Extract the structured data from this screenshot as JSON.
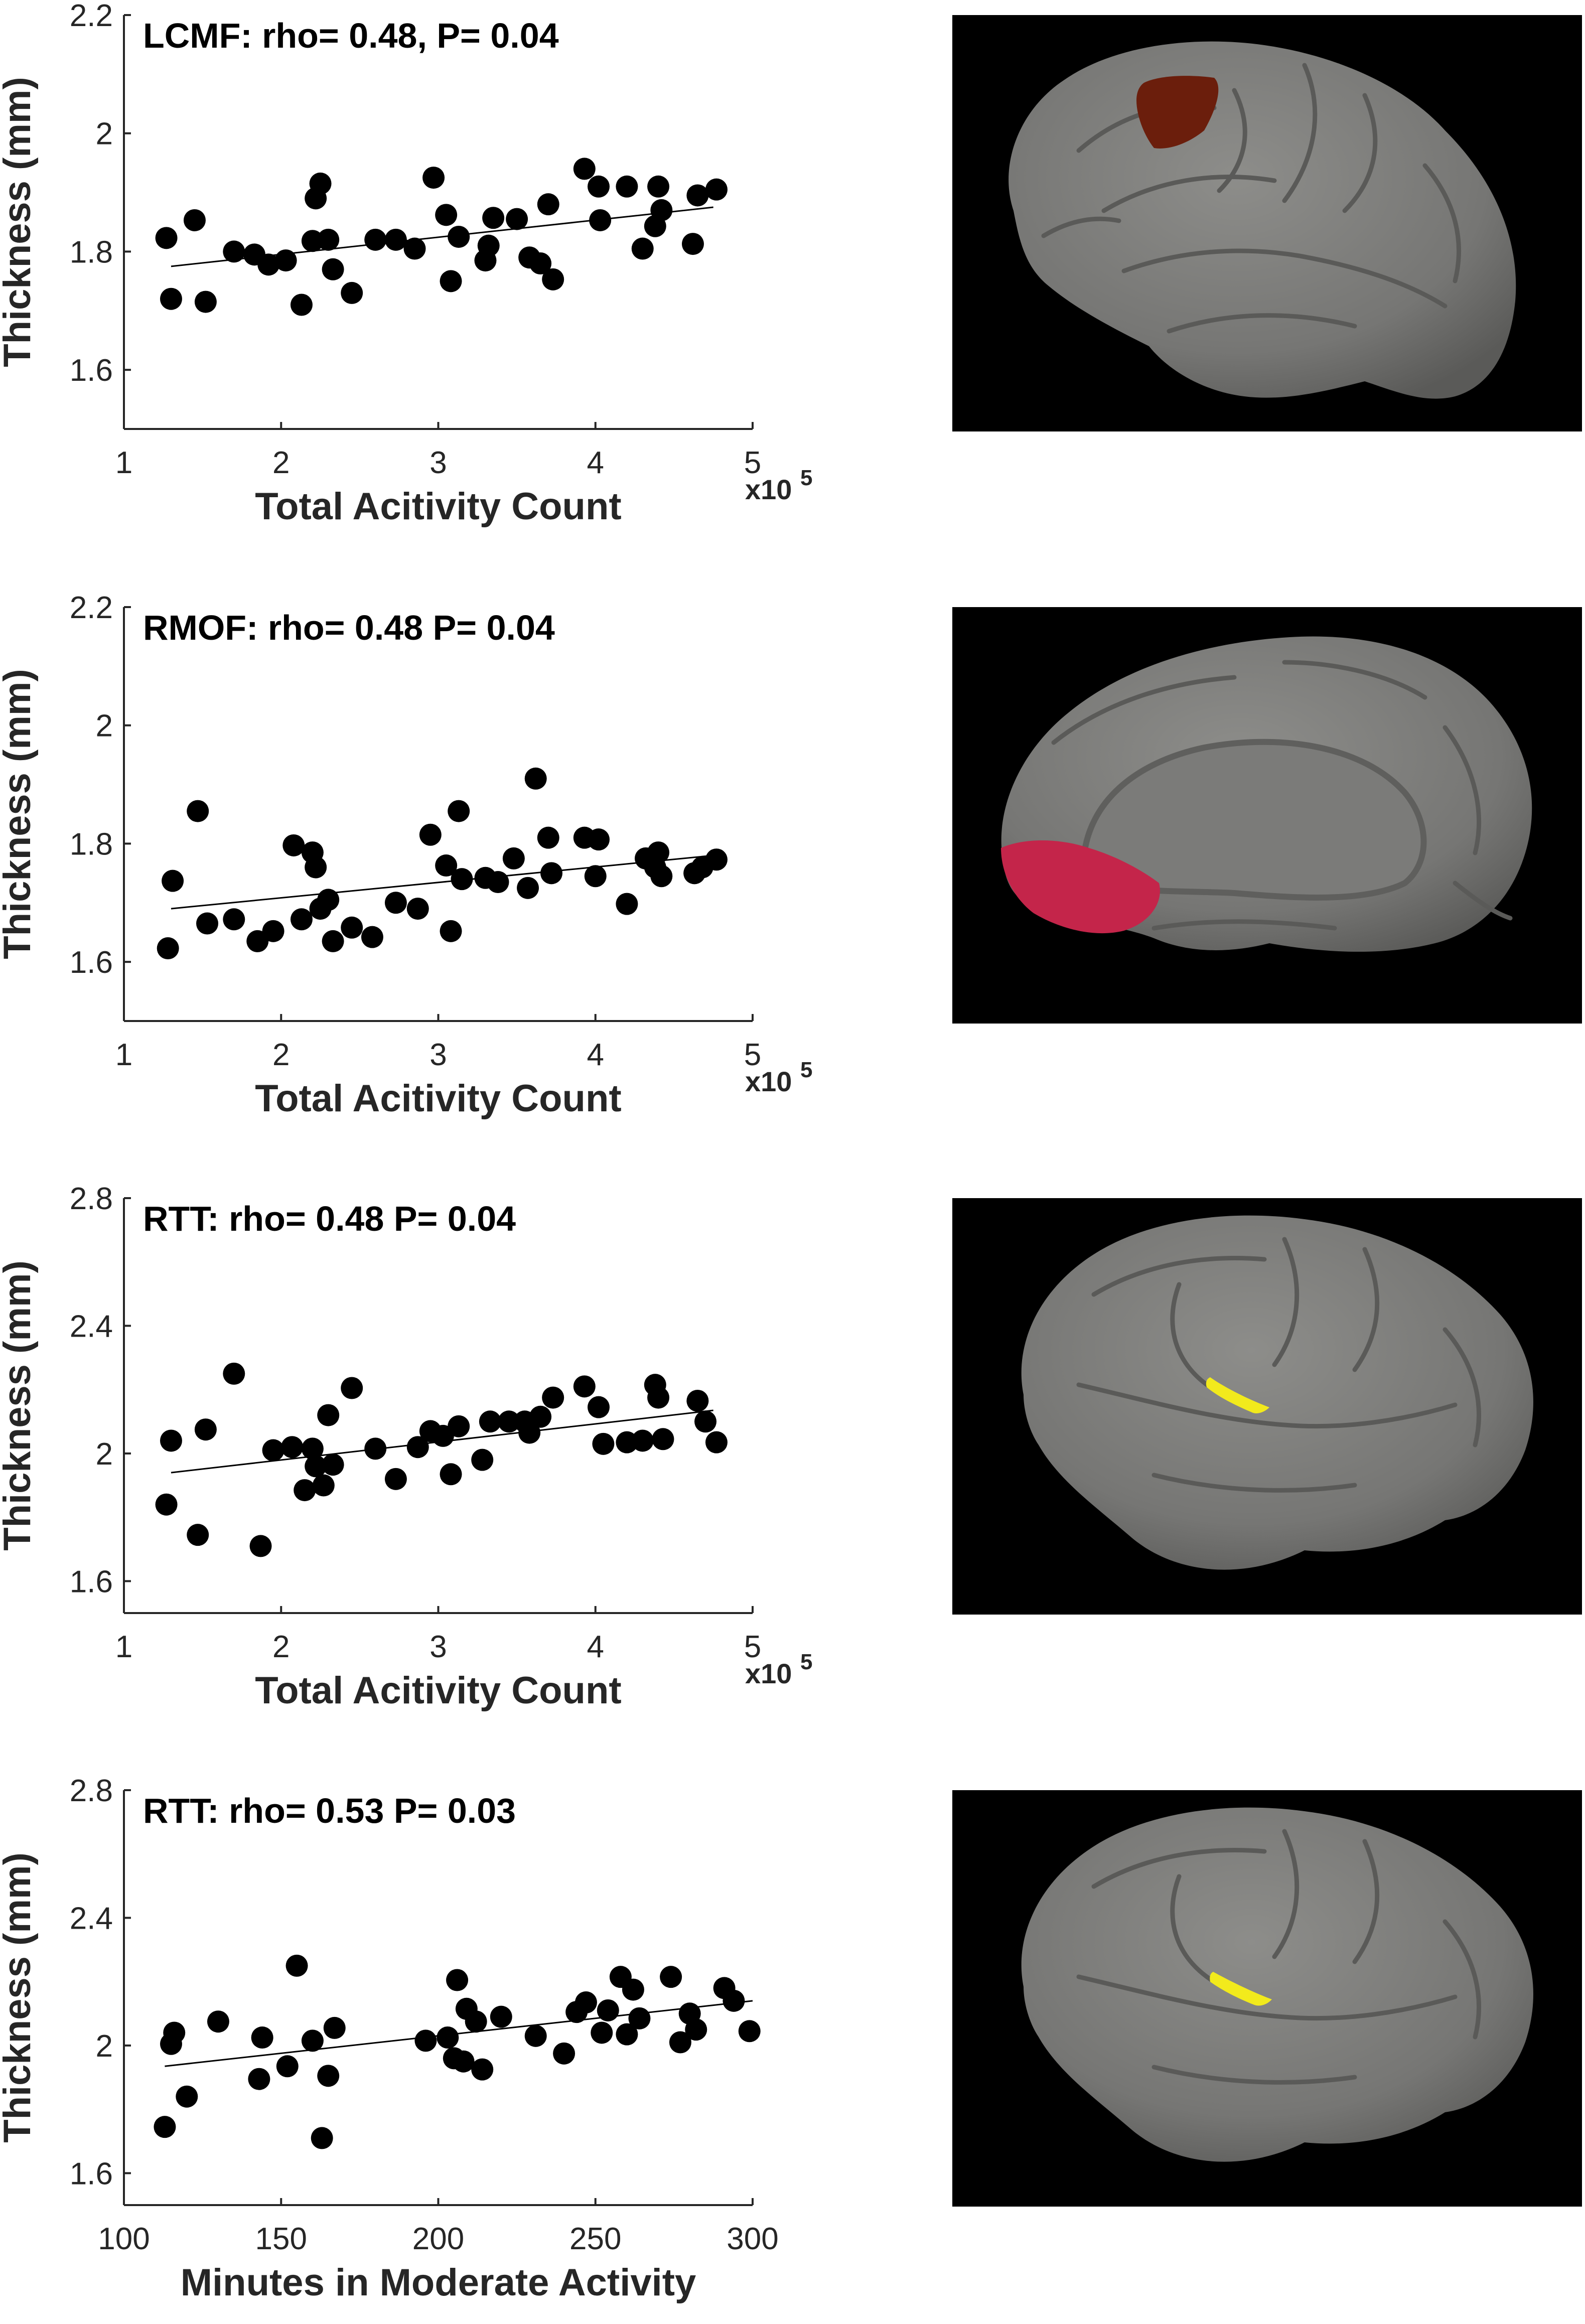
{
  "colors": {
    "marker": "#000000",
    "fit_line": "#000000",
    "axis": "#262626",
    "panel_background": "#000000",
    "cortex": "#7a7a78",
    "cortex_dark": "#5f5f5d",
    "region_lcmf": "#6b1e0c",
    "region_rmof": "#c4254a",
    "region_rtt": "#f2ea1c"
  },
  "chart_data": [
    {
      "type": "scatter",
      "title": "LCMF: rho= 0.48, P= 0.04",
      "xlabel": "Total Acitivity Count",
      "ylabel": "Thickness (mm)",
      "x_multiplier": "x10",
      "x_multiplier_exp": "5",
      "xlim": [
        1,
        5
      ],
      "ylim": [
        1.5,
        2.2
      ],
      "xticks": [
        1,
        2,
        3,
        4,
        5
      ],
      "yticks": [
        1.6,
        1.8,
        2,
        2.2
      ],
      "fit": [
        [
          1.3,
          1.775
        ],
        [
          4.75,
          1.875
        ]
      ],
      "points": [
        [
          1.27,
          1.823
        ],
        [
          1.3,
          1.72
        ],
        [
          1.45,
          1.853
        ],
        [
          1.52,
          1.715
        ],
        [
          1.7,
          1.8
        ],
        [
          1.83,
          1.795
        ],
        [
          1.92,
          1.778
        ],
        [
          2.03,
          1.785
        ],
        [
          2.13,
          1.71
        ],
        [
          2.2,
          1.818
        ],
        [
          2.22,
          1.89
        ],
        [
          2.25,
          1.915
        ],
        [
          2.3,
          1.82
        ],
        [
          2.33,
          1.77
        ],
        [
          2.45,
          1.73
        ],
        [
          2.6,
          1.82
        ],
        [
          2.73,
          1.82
        ],
        [
          2.85,
          1.805
        ],
        [
          2.97,
          1.925
        ],
        [
          3.05,
          1.862
        ],
        [
          3.08,
          1.75
        ],
        [
          3.13,
          1.825
        ],
        [
          3.3,
          1.785
        ],
        [
          3.32,
          1.81
        ],
        [
          3.35,
          1.857
        ],
        [
          3.5,
          1.855
        ],
        [
          3.58,
          1.79
        ],
        [
          3.65,
          1.78
        ],
        [
          3.7,
          1.88
        ],
        [
          3.73,
          1.753
        ],
        [
          3.93,
          1.94
        ],
        [
          4.02,
          1.91
        ],
        [
          4.03,
          1.853
        ],
        [
          4.2,
          1.91
        ],
        [
          4.3,
          1.805
        ],
        [
          4.38,
          1.843
        ],
        [
          4.4,
          1.91
        ],
        [
          4.42,
          1.87
        ],
        [
          4.62,
          1.813
        ],
        [
          4.65,
          1.895
        ],
        [
          4.77,
          1.905
        ]
      ]
    },
    {
      "type": "scatter",
      "title": "RMOF: rho= 0.48 P= 0.04",
      "xlabel": "Total Acitivity Count",
      "ylabel": "Thickness (mm)",
      "x_multiplier": "x10",
      "x_multiplier_exp": "5",
      "xlim": [
        1,
        5
      ],
      "ylim": [
        1.5,
        2.2
      ],
      "xticks": [
        1,
        2,
        3,
        4,
        5
      ],
      "yticks": [
        1.6,
        1.8,
        2,
        2.2
      ],
      "fit": [
        [
          1.3,
          1.69
        ],
        [
          4.75,
          1.78
        ]
      ],
      "points": [
        [
          1.28,
          1.623
        ],
        [
          1.31,
          1.737
        ],
        [
          1.47,
          1.855
        ],
        [
          1.53,
          1.665
        ],
        [
          1.7,
          1.672
        ],
        [
          1.85,
          1.635
        ],
        [
          1.95,
          1.652
        ],
        [
          2.08,
          1.797
        ],
        [
          2.13,
          1.672
        ],
        [
          2.2,
          1.785
        ],
        [
          2.22,
          1.76
        ],
        [
          2.25,
          1.69
        ],
        [
          2.3,
          1.705
        ],
        [
          2.33,
          1.635
        ],
        [
          2.45,
          1.658
        ],
        [
          2.58,
          1.642
        ],
        [
          2.73,
          1.7
        ],
        [
          2.87,
          1.69
        ],
        [
          2.95,
          1.815
        ],
        [
          3.05,
          1.763
        ],
        [
          3.08,
          1.652
        ],
        [
          3.13,
          1.855
        ],
        [
          3.15,
          1.74
        ],
        [
          3.3,
          1.742
        ],
        [
          3.38,
          1.735
        ],
        [
          3.48,
          1.775
        ],
        [
          3.57,
          1.725
        ],
        [
          3.62,
          1.91
        ],
        [
          3.7,
          1.81
        ],
        [
          3.72,
          1.75
        ],
        [
          3.93,
          1.81
        ],
        [
          4.02,
          1.807
        ],
        [
          4.0,
          1.745
        ],
        [
          4.2,
          1.698
        ],
        [
          4.32,
          1.775
        ],
        [
          4.38,
          1.76
        ],
        [
          4.4,
          1.785
        ],
        [
          4.42,
          1.745
        ],
        [
          4.63,
          1.75
        ],
        [
          4.68,
          1.76
        ],
        [
          4.77,
          1.773
        ]
      ]
    },
    {
      "type": "scatter",
      "title": "RTT: rho= 0.48 P= 0.04",
      "xlabel": "Total Acitivity Count",
      "ylabel": "Thickness (mm)",
      "x_multiplier": "x10",
      "x_multiplier_exp": "5",
      "xlim": [
        1,
        5
      ],
      "ylim": [
        1.5,
        2.8
      ],
      "xticks": [
        1,
        2,
        3,
        4,
        5
      ],
      "yticks": [
        1.6,
        2,
        2.4,
        2.8
      ],
      "fit": [
        [
          1.3,
          1.94
        ],
        [
          4.75,
          2.135
        ]
      ],
      "points": [
        [
          1.27,
          1.84
        ],
        [
          1.3,
          2.04
        ],
        [
          1.47,
          1.745
        ],
        [
          1.52,
          2.075
        ],
        [
          1.7,
          2.25
        ],
        [
          1.87,
          1.71
        ],
        [
          1.95,
          2.01
        ],
        [
          2.07,
          2.02
        ],
        [
          2.15,
          1.885
        ],
        [
          2.2,
          2.015
        ],
        [
          2.22,
          1.96
        ],
        [
          2.27,
          1.9
        ],
        [
          2.3,
          2.12
        ],
        [
          2.33,
          1.965
        ],
        [
          2.45,
          2.205
        ],
        [
          2.6,
          2.015
        ],
        [
          2.73,
          1.92
        ],
        [
          2.87,
          2.02
        ],
        [
          2.95,
          2.07
        ],
        [
          3.03,
          2.055
        ],
        [
          3.08,
          1.935
        ],
        [
          3.13,
          2.085
        ],
        [
          3.28,
          1.98
        ],
        [
          3.33,
          2.1
        ],
        [
          3.45,
          2.1
        ],
        [
          3.55,
          2.1
        ],
        [
          3.58,
          2.065
        ],
        [
          3.65,
          2.115
        ],
        [
          3.73,
          2.175
        ],
        [
          3.93,
          2.21
        ],
        [
          4.02,
          2.145
        ],
        [
          4.05,
          2.03
        ],
        [
          4.2,
          2.035
        ],
        [
          4.3,
          2.04
        ],
        [
          4.38,
          2.215
        ],
        [
          4.4,
          2.175
        ],
        [
          4.43,
          2.045
        ],
        [
          4.65,
          2.165
        ],
        [
          4.7,
          2.1
        ],
        [
          4.77,
          2.035
        ]
      ]
    },
    {
      "type": "scatter",
      "title": "RTT: rho= 0.53 P= 0.03",
      "xlabel": "Minutes in Moderate Activity",
      "ylabel": "Thickness (mm)",
      "x_multiplier": "",
      "x_multiplier_exp": "",
      "xlim": [
        100,
        300
      ],
      "ylim": [
        1.5,
        2.8
      ],
      "xticks": [
        100,
        150,
        200,
        250,
        300
      ],
      "yticks": [
        1.6,
        2,
        2.4,
        2.8
      ],
      "fit": [
        [
          113,
          1.935
        ],
        [
          300,
          2.14
        ]
      ],
      "points": [
        [
          113,
          1.745
        ],
        [
          115,
          2.005
        ],
        [
          116,
          2.04
        ],
        [
          120,
          1.84
        ],
        [
          130,
          2.075
        ],
        [
          143,
          1.895
        ],
        [
          144,
          2.025
        ],
        [
          152,
          1.935
        ],
        [
          155,
          2.25
        ],
        [
          160,
          2.015
        ],
        [
          163,
          1.71
        ],
        [
          165,
          1.905
        ],
        [
          167,
          2.055
        ],
        [
          196,
          2.015
        ],
        [
          203,
          2.025
        ],
        [
          205,
          1.96
        ],
        [
          206,
          2.205
        ],
        [
          208,
          1.95
        ],
        [
          209,
          2.115
        ],
        [
          212,
          2.075
        ],
        [
          214,
          1.925
        ],
        [
          220,
          2.09
        ],
        [
          231,
          2.03
        ],
        [
          240,
          1.975
        ],
        [
          244,
          2.105
        ],
        [
          247,
          2.135
        ],
        [
          252,
          2.04
        ],
        [
          254,
          2.11
        ],
        [
          258,
          2.215
        ],
        [
          260,
          2.035
        ],
        [
          262,
          2.175
        ],
        [
          264,
          2.085
        ],
        [
          274,
          2.215
        ],
        [
          277,
          2.01
        ],
        [
          280,
          2.1
        ],
        [
          282,
          2.05
        ],
        [
          291,
          2.18
        ],
        [
          294,
          2.14
        ],
        [
          299,
          2.045
        ]
      ]
    }
  ]
}
